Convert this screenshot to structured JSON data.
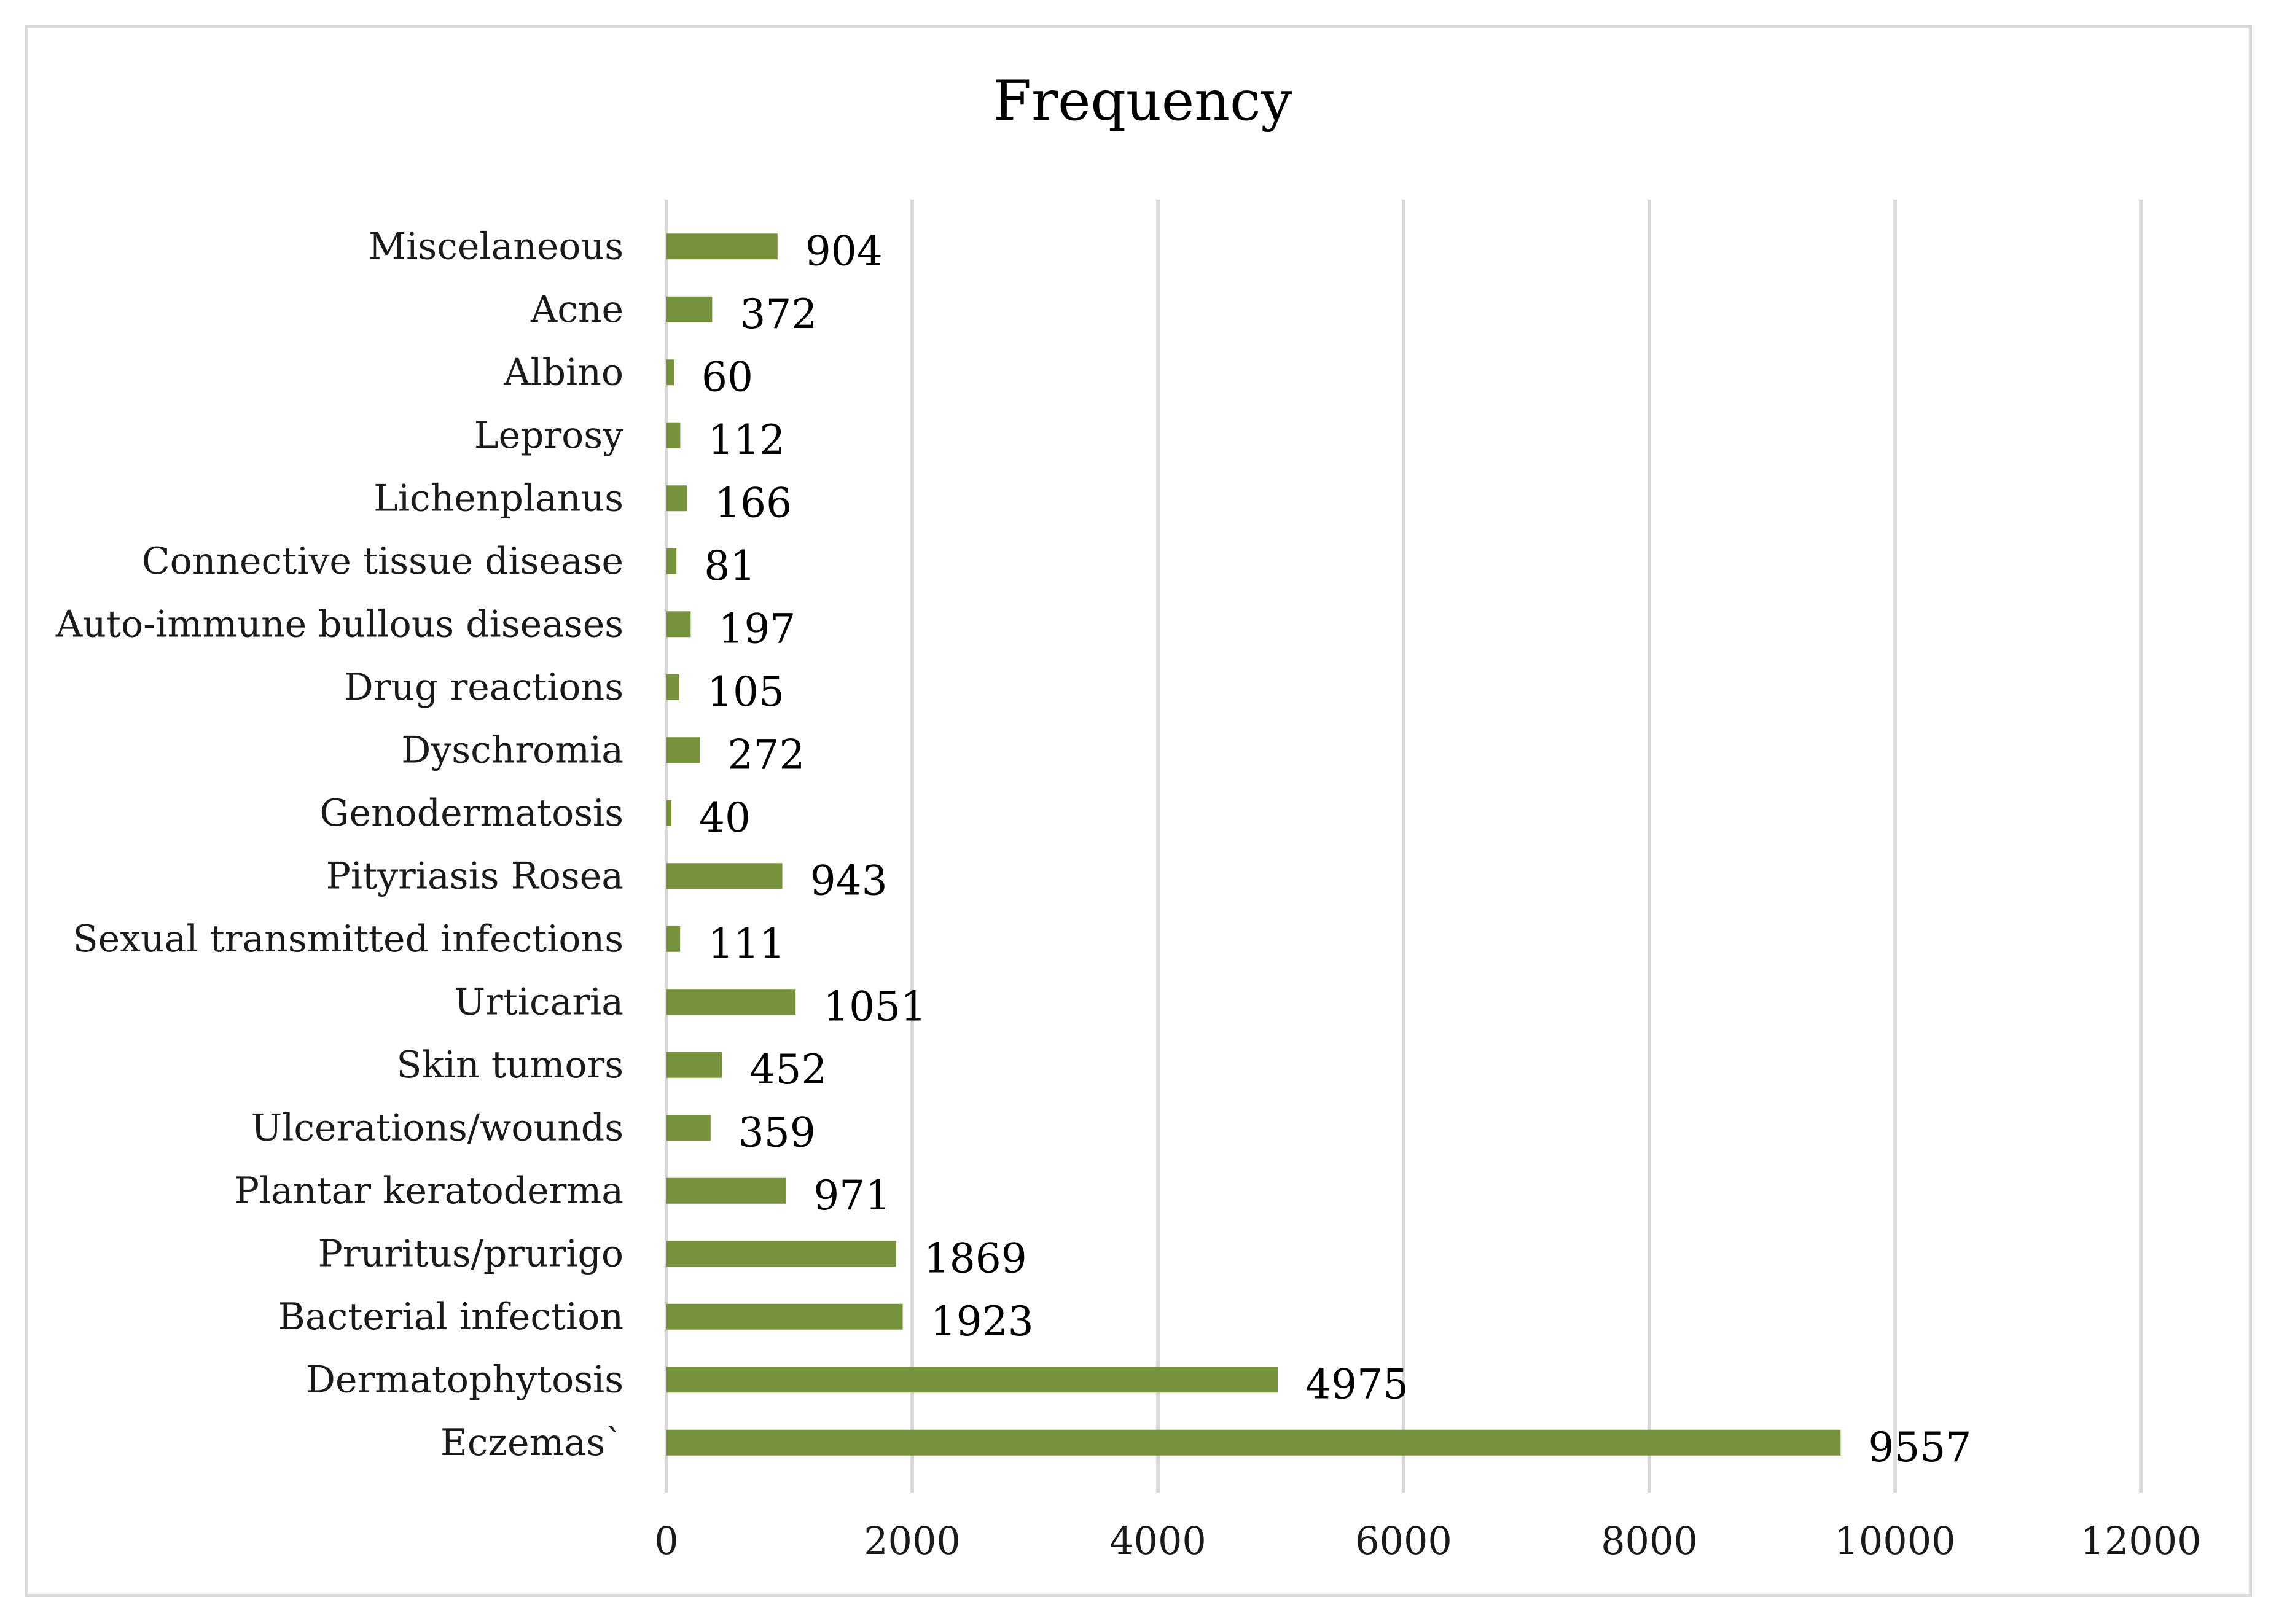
{
  "chart_data": {
    "type": "bar",
    "orientation": "horizontal",
    "title": "Frequency",
    "xlabel": "",
    "ylabel": "",
    "categories": [
      "Eczemas`",
      "Dermatophytosis",
      "Bacterial infection",
      "Pruritus/prurigo",
      "Plantar keratoderma",
      "Ulcerations/wounds",
      "Skin tumors",
      "Urticaria",
      "Sexual transmitted infections",
      "Pityriasis Rosea",
      "Genodermatosis",
      "Dyschromia",
      "Drug reactions",
      "Auto-immune bullous diseases",
      "Connective tissue disease",
      "Lichenplanus",
      "Leprosy",
      "Albino",
      "Acne",
      "Miscelaneous"
    ],
    "values": [
      9557,
      4975,
      1923,
      1869,
      971,
      359,
      452,
      1051,
      111,
      943,
      40,
      272,
      105,
      197,
      81,
      166,
      112,
      60,
      372,
      904
    ],
    "data_labels": [
      "9557",
      "4975",
      "1923",
      "1869",
      "971",
      "359",
      "452",
      "1051",
      "111",
      "943",
      "40",
      "272",
      "105",
      "197",
      "81",
      "166",
      "112",
      "60",
      "372",
      "904"
    ],
    "xlim": [
      0,
      12000
    ],
    "x_ticks": [
      "0",
      "2000",
      "4000",
      "6000",
      "8000",
      "10000",
      "12000"
    ],
    "grid": true,
    "legend": "none",
    "bar_color": "#76923c"
  }
}
